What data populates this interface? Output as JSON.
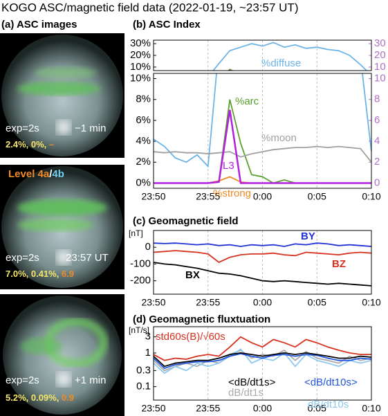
{
  "title": "KOGO ASC/magnetic field data (2022-01-19, ~23:57 UT)",
  "asc": {
    "title": "(a) ASC images",
    "level": [
      "Level 4a",
      "/",
      "4b"
    ],
    "images": [
      {
        "exp": "exp=2s",
        "time": "−1 min",
        "stats": "2.4%, 0%,",
        "l3": "–"
      },
      {
        "exp": "exp=2s",
        "time": "23:57 UT",
        "stats": "7.0%, 0.41%,",
        "l3": "6.9"
      },
      {
        "exp": "exp=2s",
        "time": "+1 min",
        "stats": "5.2%, 0.09%,",
        "l3": "0.9"
      }
    ]
  },
  "chart_data": [
    {
      "type": "line",
      "title": "(b) ASC Index",
      "x": [
        0,
        1,
        2,
        3,
        4,
        5,
        6,
        7,
        8,
        9,
        10,
        11,
        12,
        13,
        14,
        15,
        16,
        17,
        18,
        19,
        20
      ],
      "xlim": [
        0,
        20
      ],
      "xticks": [
        {
          "value": 0,
          "label": "23:50"
        },
        {
          "value": 5,
          "label": "23:55"
        },
        {
          "value": 10,
          "label": "0:00"
        },
        {
          "value": 15,
          "label": "0:05"
        },
        {
          "value": 20,
          "label": "0:10"
        }
      ],
      "grid": true,
      "panels": [
        {
          "ylim": [
            7,
            33
          ],
          "yticks": [
            {
              "value": 10,
              "label": "10%"
            },
            {
              "value": 20,
              "label": "20%"
            },
            {
              "value": 30,
              "label": "30%"
            }
          ],
          "y2lim": [
            7,
            33
          ],
          "y2ticks": [
            10,
            20,
            30
          ]
        },
        {
          "ylim": [
            -0.5,
            10.5
          ],
          "yticks": [
            {
              "value": 0,
              "label": "0%"
            },
            {
              "value": 2,
              "label": "2%"
            },
            {
              "value": 4,
              "label": "4%"
            },
            {
              "value": 6,
              "label": "6%"
            },
            {
              "value": 8,
              "label": "8%"
            },
            {
              "value": 10,
              "label": "10%"
            }
          ],
          "y2lim": [
            -0.5,
            10.5
          ],
          "y2ticks": [
            0,
            2,
            4,
            6,
            8,
            10
          ]
        }
      ],
      "series": [
        {
          "name": "%diffuse",
          "color": "#6cb4e8",
          "values": [
            4.2,
            3.5,
            2.4,
            2.0,
            2.7,
            1.6,
            13,
            24,
            27,
            30,
            28,
            31,
            27,
            29,
            26,
            27,
            25,
            24,
            20,
            12,
            3
          ]
        },
        {
          "name": "%arc",
          "color": "#5aa02c",
          "values": [
            0,
            0,
            0,
            0,
            0,
            0,
            0.2,
            8.0,
            3.8,
            0.8,
            0.6,
            0,
            0.3,
            0,
            0,
            0,
            0,
            0,
            0,
            0,
            0
          ]
        },
        {
          "name": "%moon",
          "color": "#a0a0a0",
          "values": [
            3.0,
            2.9,
            3.0,
            2.9,
            2.9,
            2.8,
            2.9,
            3.0,
            2.5,
            2.8,
            3.0,
            3.2,
            3.3,
            3.4,
            3.4,
            3.5,
            3.4,
            3.5,
            3.4,
            3.3,
            2.0
          ]
        },
        {
          "name": "%strong",
          "color": "#f08a24",
          "values": [
            0,
            0,
            0,
            0,
            0,
            0,
            0.2,
            0.6,
            0.1,
            0,
            0,
            0,
            0,
            0,
            0,
            0,
            0,
            0,
            0,
            0,
            0
          ]
        },
        {
          "name": "L3",
          "color": "#b41ee0",
          "axis": "y2",
          "values": [
            0,
            0,
            0,
            0,
            0,
            0,
            0.1,
            7.0,
            0,
            0,
            0,
            0,
            0,
            0,
            0,
            0,
            0,
            0,
            0,
            0,
            0
          ]
        }
      ]
    },
    {
      "type": "line",
      "title": "(c) Geomagnetic field",
      "ylabel": "[nT]",
      "x": [
        0,
        1,
        2,
        3,
        4,
        5,
        6,
        7,
        8,
        9,
        10,
        11,
        12,
        13,
        14,
        15,
        16,
        17,
        18,
        19,
        20
      ],
      "xlim": [
        0,
        20
      ],
      "xticks": [
        {
          "value": 0,
          "label": "23:50"
        },
        {
          "value": 5,
          "label": "23:55"
        },
        {
          "value": 10,
          "label": "0:00"
        },
        {
          "value": 15,
          "label": "0:05"
        },
        {
          "value": 20,
          "label": "0:10"
        }
      ],
      "grid": true,
      "ylim": [
        -280,
        100
      ],
      "yticks": [
        -200,
        -100,
        0
      ],
      "series": [
        {
          "name": "BY",
          "color": "#1f2fd6",
          "values": [
            25,
            22,
            25,
            20,
            15,
            20,
            10,
            15,
            5,
            15,
            10,
            15,
            5,
            20,
            15,
            25,
            20,
            10,
            15,
            10,
            5
          ]
        },
        {
          "name": "BZ",
          "color": "#d6301f",
          "values": [
            -30,
            -25,
            -20,
            -25,
            -30,
            -40,
            -90,
            -60,
            -45,
            -40,
            -40,
            -35,
            -45,
            -50,
            -30,
            -35,
            -40,
            -45,
            -35,
            -30,
            -35
          ]
        },
        {
          "name": "BX",
          "color": "#000000",
          "values": [
            -90,
            -100,
            -105,
            -115,
            -125,
            -140,
            -155,
            -160,
            -170,
            -185,
            -200,
            -205,
            -200,
            -205,
            -210,
            -215,
            -220,
            -215,
            -220,
            -225,
            -230
          ]
        }
      ]
    },
    {
      "type": "line",
      "title": "(d) Geomagnetic fluxtuation",
      "ylabel": "[nT/s]",
      "log": true,
      "x": [
        0,
        1,
        2,
        3,
        4,
        5,
        6,
        7,
        8,
        9,
        10,
        11,
        12,
        13,
        14,
        15,
        16,
        17,
        18,
        19,
        20
      ],
      "xlim": [
        0,
        20
      ],
      "xticks": [
        {
          "value": 0,
          "label": "23:50"
        },
        {
          "value": 5,
          "label": "23:55"
        },
        {
          "value": 10,
          "label": "0:00"
        },
        {
          "value": 15,
          "label": "0:05"
        },
        {
          "value": 20,
          "label": "0:10"
        }
      ],
      "grid": true,
      "ylim": [
        0.04,
        6
      ],
      "yticks": [
        0.1,
        0.3,
        1,
        3
      ],
      "series": [
        {
          "name": "dB/dt1s",
          "color": "#aaaaaa",
          "values": [
            0.6,
            0.3,
            0.4,
            0.5,
            0.4,
            0.6,
            0.5,
            0.9,
            1.2,
            0.7,
            0.9,
            0.8,
            1.2,
            0.6,
            1.1,
            0.7,
            0.6,
            0.5,
            0.8,
            0.6,
            0.7
          ]
        },
        {
          "name": "dB/dt10s",
          "color": "#8ec8ee",
          "values": [
            0.5,
            0.25,
            0.4,
            0.3,
            0.5,
            0.4,
            0.5,
            0.8,
            1.3,
            0.5,
            0.7,
            0.6,
            1.0,
            0.4,
            0.9,
            0.6,
            0.5,
            0.4,
            0.6,
            0.5,
            0.6
          ]
        },
        {
          "name": "std60s(B)/√60s",
          "color": "#d6301f",
          "values": [
            0.9,
            0.6,
            0.7,
            0.65,
            0.8,
            0.9,
            0.8,
            1.5,
            3.0,
            2.0,
            1.5,
            2.5,
            2.0,
            1.5,
            2.5,
            2.0,
            1.5,
            1.2,
            1.0,
            0.9,
            0.9
          ]
        },
        {
          "name": "<dB/dt10s>",
          "color": "#1f55e0",
          "values": [
            0.7,
            0.35,
            0.45,
            0.5,
            0.55,
            0.55,
            0.6,
            0.8,
            0.95,
            0.8,
            0.7,
            0.85,
            0.9,
            0.8,
            0.9,
            0.85,
            0.7,
            0.6,
            0.6,
            0.7,
            0.65
          ]
        },
        {
          "name": "<dB/dt1s>",
          "color": "#000000",
          "values": [
            0.8,
            0.4,
            0.5,
            0.55,
            0.6,
            0.6,
            0.7,
            0.9,
            1.0,
            0.9,
            0.8,
            0.9,
            1.0,
            0.9,
            1.0,
            0.9,
            0.8,
            0.7,
            0.7,
            0.8,
            0.75
          ]
        }
      ]
    }
  ]
}
